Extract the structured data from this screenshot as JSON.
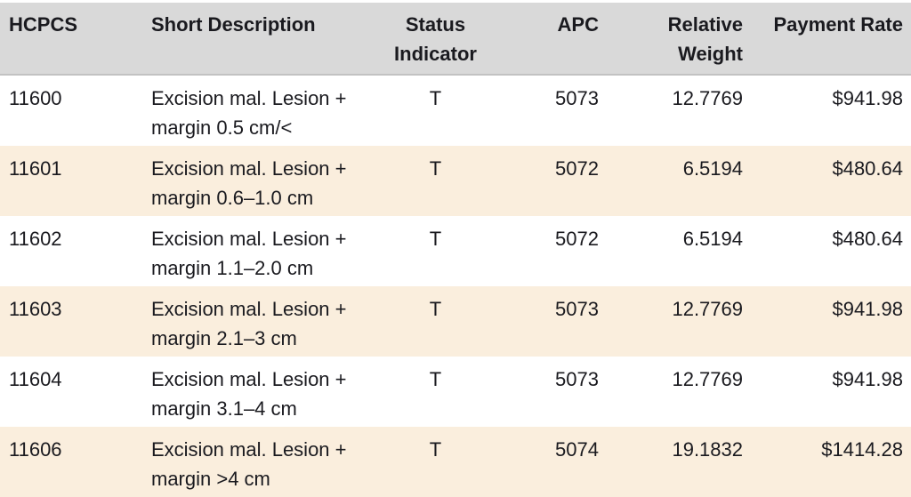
{
  "table": {
    "columns": [
      {
        "key": "hcpcs",
        "label": "HCPCS"
      },
      {
        "key": "short_description",
        "label": "Short Description"
      },
      {
        "key": "status_indicator",
        "label": "Status Indicator"
      },
      {
        "key": "apc",
        "label": "APC"
      },
      {
        "key": "relative_weight",
        "label": "Relative Weight"
      },
      {
        "key": "payment_rate",
        "label": "Payment Rate"
      }
    ],
    "rows": [
      {
        "hcpcs": "11600",
        "short_description": "Excision mal. Lesion +\nmargin 0.5 cm/<",
        "status_indicator": "T",
        "apc": "5073",
        "relative_weight": "12.7769",
        "payment_rate": "$941.98"
      },
      {
        "hcpcs": "11601",
        "short_description": "Excision mal. Lesion +\nmargin 0.6–1.0 cm",
        "status_indicator": "T",
        "apc": "5072",
        "relative_weight": "6.5194",
        "payment_rate": "$480.64"
      },
      {
        "hcpcs": "11602",
        "short_description": "Excision mal. Lesion +\nmargin 1.1–2.0 cm",
        "status_indicator": "T",
        "apc": "5072",
        "relative_weight": "6.5194",
        "payment_rate": "$480.64"
      },
      {
        "hcpcs": "11603",
        "short_description": "Excision mal. Lesion +\nmargin 2.1–3 cm",
        "status_indicator": "T",
        "apc": "5073",
        "relative_weight": "12.7769",
        "payment_rate": "$941.98"
      },
      {
        "hcpcs": "11604",
        "short_description": "Excision mal. Lesion +\nmargin 3.1–4 cm",
        "status_indicator": "T",
        "apc": "5073",
        "relative_weight": "12.7769",
        "payment_rate": "$941.98"
      },
      {
        "hcpcs": "11606",
        "short_description": "Excision mal. Lesion +\nmargin >4 cm",
        "status_indicator": "T",
        "apc": "5074",
        "relative_weight": "19.1832",
        "payment_rate": "$1414.28"
      }
    ]
  },
  "colors": {
    "header_bg": "#d9d9d9",
    "alt_row_bg": "#faeedd",
    "text": "#1a1a1f"
  }
}
